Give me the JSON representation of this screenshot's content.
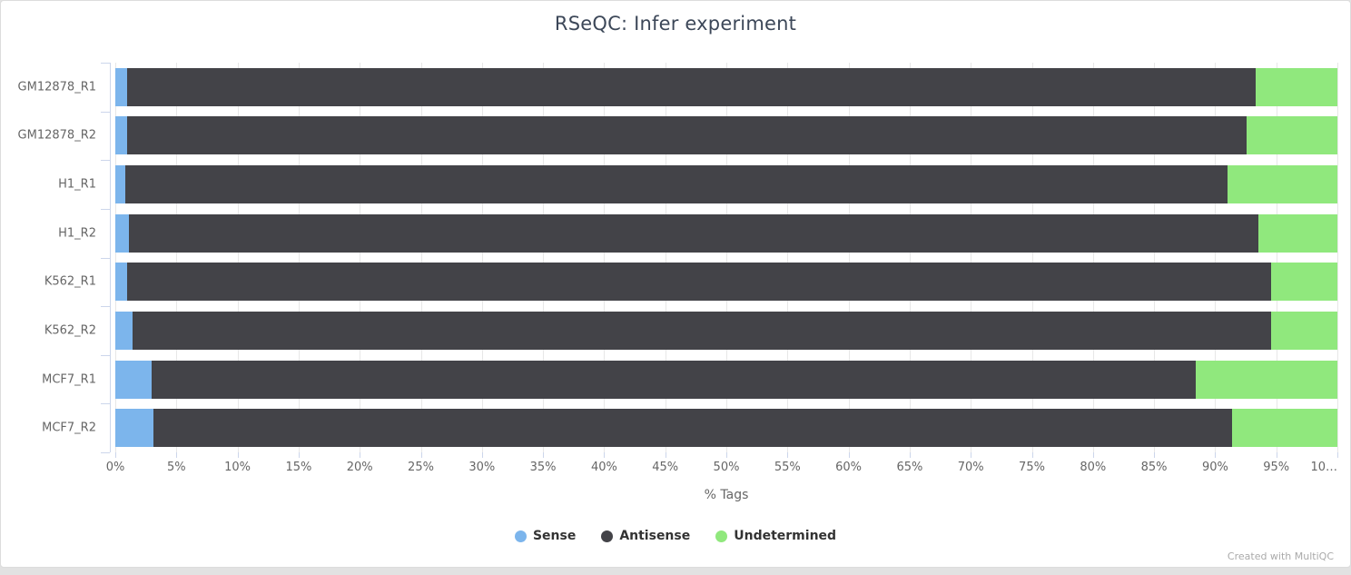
{
  "page": {
    "footer": "Created with MultiQC"
  },
  "chart_data": {
    "type": "bar",
    "orientation": "horizontal-stacked",
    "title": "RSeQC: Infer experiment",
    "xlabel": "% Tags",
    "xlim": [
      0,
      100
    ],
    "xtick_step": 5,
    "xticks": [
      "0%",
      "5%",
      "10%",
      "15%",
      "20%",
      "25%",
      "30%",
      "35%",
      "40%",
      "45%",
      "50%",
      "55%",
      "60%",
      "65%",
      "70%",
      "75%",
      "80%",
      "85%",
      "90%",
      "95%",
      "10…"
    ],
    "grid": true,
    "legend_position": "bottom",
    "categories": [
      "GM12878_R1",
      "GM12878_R2",
      "H1_R1",
      "H1_R2",
      "K562_R1",
      "K562_R2",
      "MCF7_R1",
      "MCF7_R2"
    ],
    "series": [
      {
        "name": "Sense",
        "color": "#7cb5ec",
        "values": [
          1.0,
          1.0,
          0.8,
          1.1,
          1.0,
          1.4,
          3.0,
          3.1
        ]
      },
      {
        "name": "Antisense",
        "color": "#434348",
        "values": [
          92.3,
          91.6,
          90.2,
          92.4,
          93.6,
          93.2,
          85.4,
          88.3
        ]
      },
      {
        "name": "Undetermined",
        "color": "#90e87d",
        "values": [
          6.7,
          7.4,
          9.0,
          6.5,
          5.4,
          5.4,
          11.6,
          8.6
        ]
      }
    ]
  }
}
